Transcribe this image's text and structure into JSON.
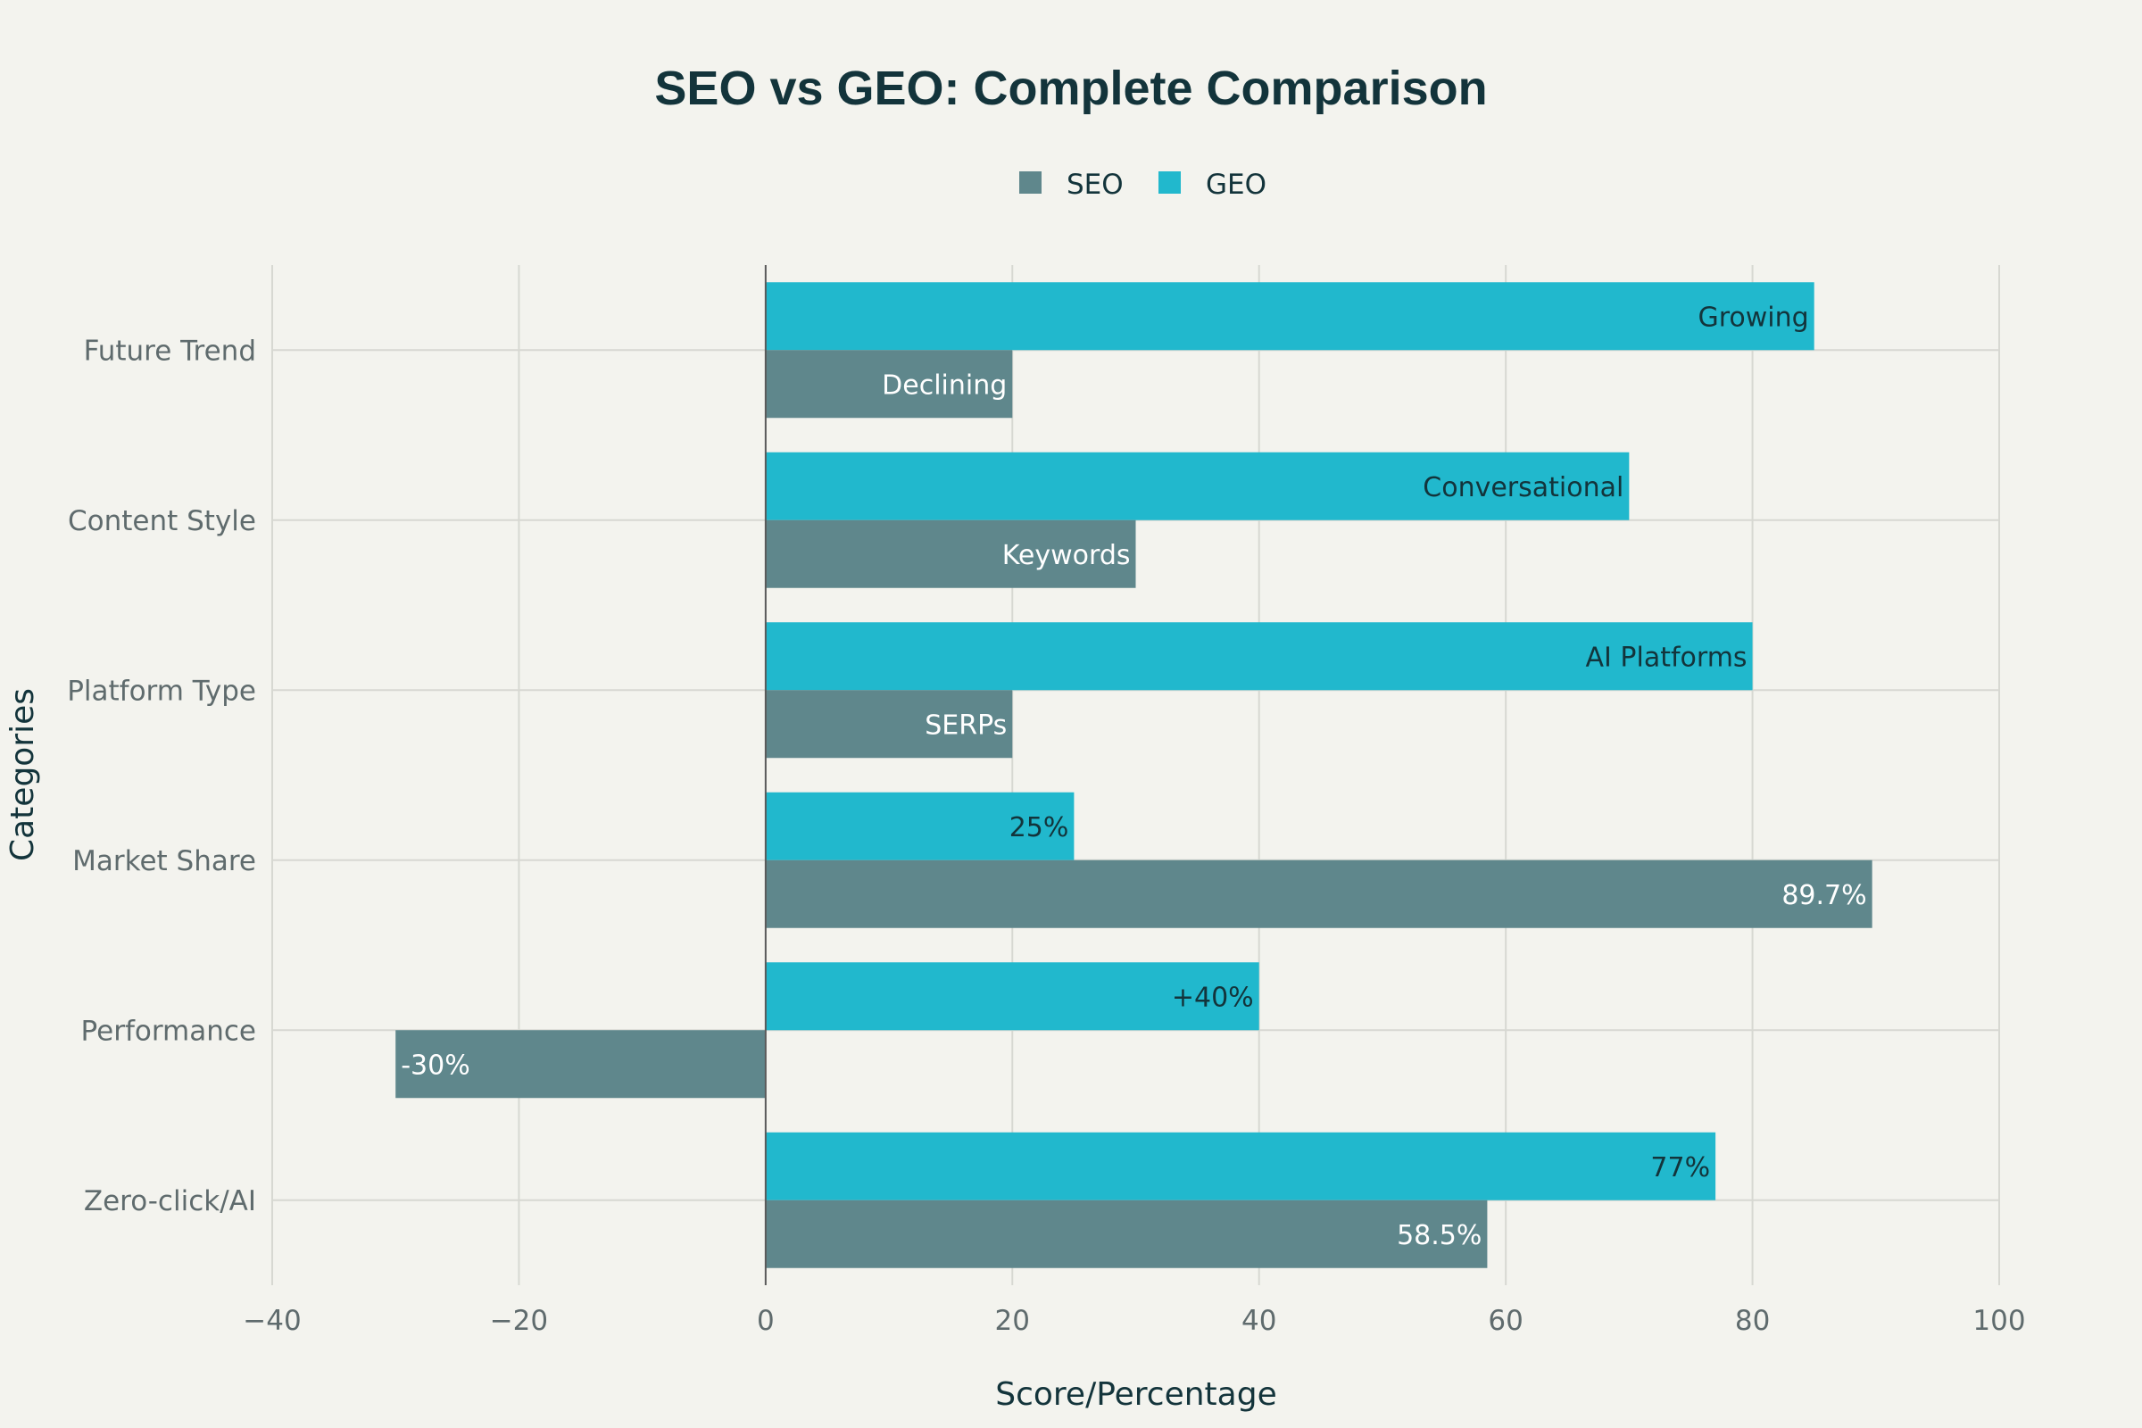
{
  "chart_data": {
    "type": "bar",
    "orientation": "horizontal",
    "title": "SEO vs GEO: Complete Comparison",
    "xlabel": "Score/Percentage",
    "ylabel": "Categories",
    "xlim": [
      -40,
      100
    ],
    "xticks": [
      -40,
      -20,
      0,
      20,
      40,
      60,
      80,
      100
    ],
    "xtick_labels": [
      "−40",
      "−20",
      "0",
      "20",
      "40",
      "60",
      "80",
      "100"
    ],
    "grid": true,
    "legend_position": "top-center",
    "categories": [
      "Future Trend",
      "Content Style",
      "Platform Type",
      "Market Share",
      "Performance",
      "Zero-click/AI"
    ],
    "series": [
      {
        "name": "SEO",
        "color": "#5f878c",
        "label_color": "#ffffff",
        "values": [
          20,
          30,
          20,
          89.7,
          -30,
          58.5
        ],
        "labels": [
          "Declining",
          "Keywords",
          "SERPs",
          "89.7%",
          "-30%",
          "58.5%"
        ]
      },
      {
        "name": "GEO",
        "color": "#21b8cd",
        "label_color": "#13343b",
        "values": [
          85,
          70,
          80,
          25,
          40,
          77
        ],
        "labels": [
          "Growing",
          "Conversational",
          "AI Platforms",
          "25%",
          "+40%",
          "77%"
        ]
      }
    ]
  }
}
